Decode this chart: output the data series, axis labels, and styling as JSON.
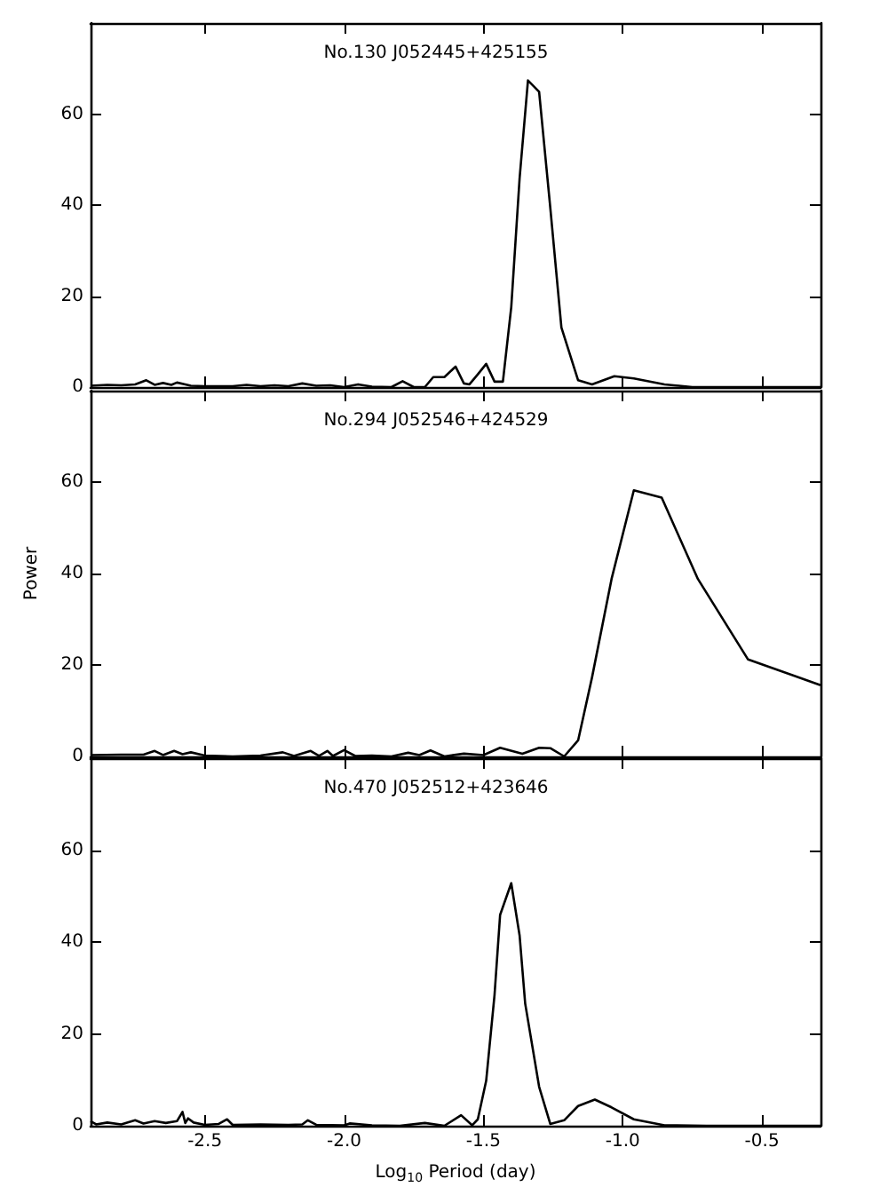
{
  "chart_data": [
    {
      "type": "line",
      "title": "No.130 J052445+425155",
      "color": "#000000",
      "marker": "none",
      "xlim": [
        -2.91,
        -0.29
      ],
      "ylim": [
        0,
        80
      ],
      "xticks": [
        {
          "value": -2.5,
          "label": null
        },
        {
          "value": -2,
          "label": null
        },
        {
          "value": -1.5,
          "label": null
        },
        {
          "value": -1,
          "label": null
        },
        {
          "value": -0.5,
          "label": null
        }
      ],
      "yticks": [
        0,
        20,
        40,
        60
      ],
      "tick_labels": "y",
      "x": [
        -2.91,
        -2.85,
        -2.8,
        -2.75,
        -2.71,
        -2.68,
        -2.65,
        -2.62,
        -2.6,
        -2.57,
        -2.55,
        -2.5,
        -2.4,
        -2.35,
        -2.3,
        -2.25,
        -2.2,
        -2.15,
        -2.1,
        -2.05,
        -2.0,
        -1.95,
        -1.9,
        -1.83,
        -1.79,
        -1.75,
        -1.71,
        -1.68,
        -1.64,
        -1.6,
        -1.57,
        -1.55,
        -1.52,
        -1.49,
        -1.46,
        -1.43,
        -1.4,
        -1.37,
        -1.34,
        -1.3,
        -1.26,
        -1.22,
        -1.16,
        -1.11,
        -1.03,
        -0.96,
        -0.85,
        -0.75,
        -0.29
      ],
      "values": [
        0.3,
        0.5,
        0.4,
        0.6,
        1.5,
        0.5,
        0.9,
        0.5,
        1.0,
        0.6,
        0.3,
        0.2,
        0.2,
        0.5,
        0.2,
        0.4,
        0.2,
        0.8,
        0.3,
        0.4,
        0,
        0.6,
        0.1,
        0,
        1.3,
        0,
        0,
        2.2,
        2.2,
        4.5,
        0.8,
        0.6,
        2.8,
        5.1,
        1.2,
        1.2,
        17.6,
        45.9,
        67.4,
        64.9,
        39.5,
        13.1,
        1.5,
        0.6,
        2.4,
        1.9,
        0.6,
        0,
        0
      ]
    },
    {
      "type": "line",
      "title": "No.294 J052546+424529",
      "ylabel": "Power",
      "color": "#000000",
      "marker": "none",
      "xlim": [
        -2.91,
        -0.29
      ],
      "ylim": [
        0,
        80
      ],
      "xticks": [
        {
          "value": -2.5,
          "label": null
        },
        {
          "value": -2,
          "label": null
        },
        {
          "value": -1.5,
          "label": null
        },
        {
          "value": -1,
          "label": null
        },
        {
          "value": -0.5,
          "label": null
        }
      ],
      "yticks": [
        0,
        20,
        40,
        60
      ],
      "tick_labels": "y",
      "x": [
        -2.91,
        -2.8,
        -2.72,
        -2.68,
        -2.65,
        -2.61,
        -2.58,
        -2.55,
        -2.5,
        -2.4,
        -2.3,
        -2.22,
        -2.18,
        -2.12,
        -2.09,
        -2.06,
        -2.04,
        -2.0,
        -1.96,
        -1.9,
        -1.83,
        -1.77,
        -1.73,
        -1.69,
        -1.64,
        -1.57,
        -1.5,
        -1.44,
        -1.36,
        -1.3,
        -1.26,
        -1.21,
        -1.16,
        -1.11,
        -1.04,
        -0.96,
        -0.86,
        -0.73,
        -0.55,
        -0.29
      ],
      "values": [
        0.3,
        0.4,
        0.4,
        1.2,
        0.3,
        1.2,
        0.5,
        0.9,
        0.2,
        0,
        0.2,
        0.9,
        0.1,
        1.2,
        0.1,
        1.2,
        0.1,
        1.4,
        0.1,
        0.2,
        0,
        0.8,
        0.3,
        1.3,
        0,
        0.6,
        0.3,
        1.9,
        0.6,
        1.9,
        1.8,
        0,
        3.5,
        17.3,
        38.8,
        58.2,
        56.6,
        38.8,
        21.2,
        15.6
      ]
    },
    {
      "type": "line",
      "title": "No.470 J052512+423646",
      "xlabel": "Log$_{10}$ Period (day)",
      "color": "#000000",
      "marker": "none",
      "xlim": [
        -2.91,
        -0.29
      ],
      "ylim": [
        0,
        80
      ],
      "xticks": [
        {
          "value": -2.5,
          "label": "-2.5"
        },
        {
          "value": -2,
          "label": "-2.0"
        },
        {
          "value": -1.5,
          "label": "-1.5"
        },
        {
          "value": -1,
          "label": "-1.0"
        },
        {
          "value": -0.5,
          "label": "-0.5"
        }
      ],
      "yticks": [
        0,
        20,
        40,
        60
      ],
      "x": [
        -2.91,
        -2.89,
        -2.85,
        -2.8,
        -2.75,
        -2.72,
        -2.68,
        -2.64,
        -2.6,
        -2.58,
        -2.57,
        -2.56,
        -2.54,
        -2.5,
        -2.45,
        -2.42,
        -2.4,
        -2.3,
        -2.2,
        -2.15,
        -2.13,
        -2.1,
        -2.0,
        -1.98,
        -1.9,
        -1.8,
        -1.71,
        -1.64,
        -1.58,
        -1.54,
        -1.52,
        -1.49,
        -1.46,
        -1.44,
        -1.4,
        -1.37,
        -1.35,
        -1.3,
        -1.26,
        -1.21,
        -1.16,
        -1.1,
        -1.04,
        -0.96,
        -0.85,
        -0.7,
        -0.29
      ],
      "values": [
        1.0,
        0.3,
        0.7,
        0.3,
        1.2,
        0.5,
        1.0,
        0.6,
        1.0,
        3.0,
        0.6,
        1.6,
        0.7,
        0.2,
        0.4,
        1.4,
        0.2,
        0.3,
        0.2,
        0.3,
        1.2,
        0.2,
        0.1,
        0.5,
        0.1,
        0,
        0.6,
        0,
        2.3,
        0.1,
        1.4,
        9.8,
        28.5,
        45.9,
        52.8,
        41.4,
        26.6,
        8.5,
        0.4,
        1.2,
        4.3,
        5.7,
        4.0,
        1.4,
        0.1,
        0,
        0
      ]
    }
  ]
}
